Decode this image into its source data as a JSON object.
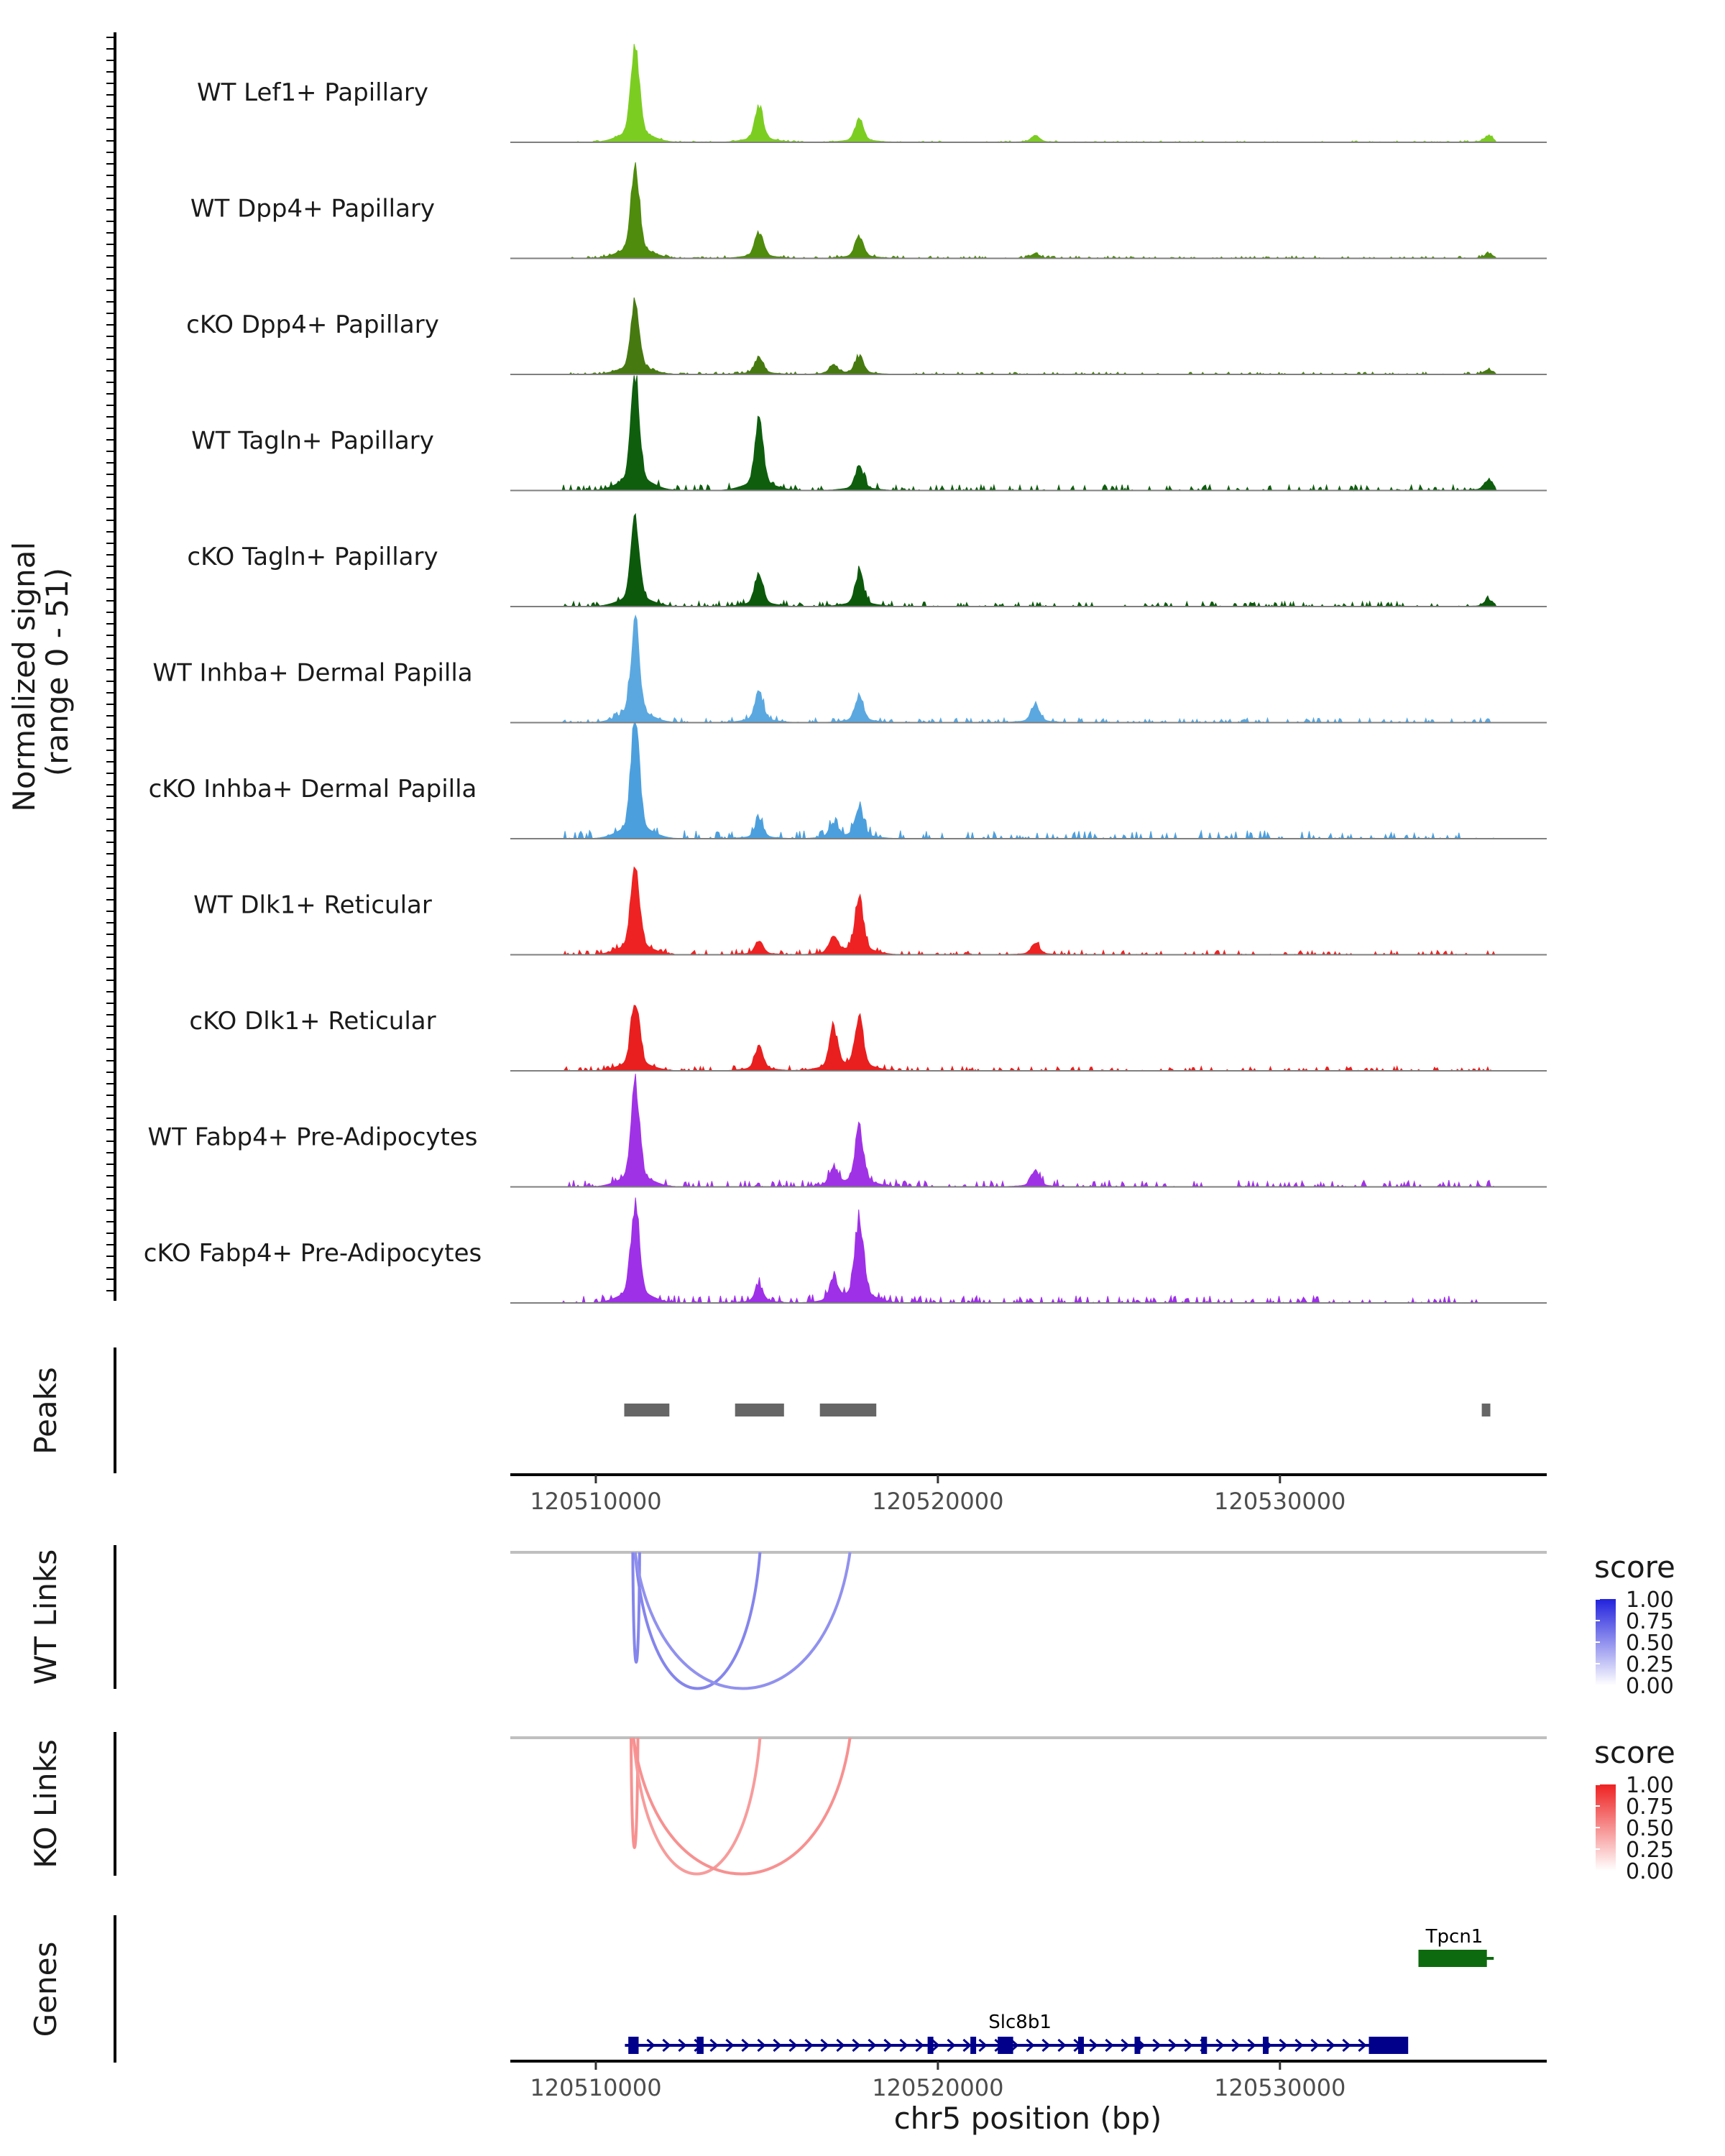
{
  "chart_data": {
    "type": "area",
    "chromosome": "chr5",
    "xlabel": "chr5 position (bp)",
    "xlim": [
      120507500,
      120537800
    ],
    "x_ticks": [
      120510000,
      120520000,
      120530000
    ],
    "x_tick_labels": [
      "120510000",
      "120520000",
      "120530000"
    ],
    "coverage": {
      "ylabel": "Normalized signal\n(range 0 - 51)",
      "ylabel_lines": [
        "Normalized signal",
        "(range 0 - 51)"
      ],
      "ylim": [
        0,
        51
      ],
      "tracks": [
        {
          "name": "WT Lef1+ Papillary",
          "color": "#7CCD22",
          "peaks": [
            [
              120511150,
              42
            ],
            [
              120514770,
              16
            ],
            [
              120517700,
              10
            ],
            [
              120522850,
              3
            ],
            [
              120536100,
              3
            ]
          ],
          "noise": 0.6
        },
        {
          "name": "WT Dpp4+ Papillary",
          "color": "#4F8B0C",
          "peaks": [
            [
              120511150,
              42
            ],
            [
              120514770,
              12
            ],
            [
              120517700,
              10
            ],
            [
              120522850,
              2
            ],
            [
              120536100,
              2
            ]
          ],
          "noise": 1.0
        },
        {
          "name": "cKO Dpp4+ Papillary",
          "color": "#467A10",
          "peaks": [
            [
              120511150,
              32
            ],
            [
              120514770,
              8
            ],
            [
              120517700,
              8
            ],
            [
              120516950,
              4
            ],
            [
              120536100,
              2
            ]
          ],
          "noise": 1.0
        },
        {
          "name": "WT Tagln+ Papillary",
          "color": "#0E5E0E",
          "peaks": [
            [
              120511150,
              51
            ],
            [
              120514770,
              31
            ],
            [
              120517700,
              11
            ],
            [
              120536100,
              5
            ]
          ],
          "noise": 2.6
        },
        {
          "name": "cKO Tagln+ Papillary",
          "color": "#0C590C",
          "peaks": [
            [
              120511150,
              38
            ],
            [
              120514770,
              15
            ],
            [
              120517700,
              15
            ],
            [
              120536100,
              3
            ]
          ],
          "noise": 2.2
        },
        {
          "name": "WT Inhba+ Dermal Papilla",
          "color": "#5BA8E0",
          "peaks": [
            [
              120511150,
              45
            ],
            [
              120514770,
              14
            ],
            [
              120517700,
              12
            ],
            [
              120522850,
              8
            ]
          ],
          "noise": 2.0
        },
        {
          "name": "cKO Inhba+ Dermal Papilla",
          "color": "#4C9FDD",
          "peaks": [
            [
              120511150,
              51
            ],
            [
              120514770,
              8
            ],
            [
              120517700,
              14
            ],
            [
              120516950,
              7
            ]
          ],
          "noise": 3.6
        },
        {
          "name": "WT Dlk1+ Reticular",
          "color": "#EE2222",
          "peaks": [
            [
              120511150,
              42
            ],
            [
              120517700,
              25
            ],
            [
              120516950,
              8
            ],
            [
              120514770,
              6
            ],
            [
              120522850,
              5
            ]
          ],
          "noise": 2.0
        },
        {
          "name": "cKO Dlk1+ Reticular",
          "color": "#E91F1F",
          "peaks": [
            [
              120511150,
              33
            ],
            [
              120514770,
              11
            ],
            [
              120517700,
              23
            ],
            [
              120516950,
              18
            ]
          ],
          "noise": 2.0
        },
        {
          "name": "WT Fabp4+ Pre-Adipocytes",
          "color": "#A032E6",
          "peaks": [
            [
              120511150,
              45
            ],
            [
              120517700,
              26
            ],
            [
              120516950,
              8
            ],
            [
              120522850,
              7
            ]
          ],
          "noise": 3.0
        },
        {
          "name": "cKO Fabp4+ Pre-Adipocytes",
          "color": "#9E30E8",
          "peaks": [
            [
              120511150,
              45
            ],
            [
              120517700,
              38
            ],
            [
              120516950,
              10
            ],
            [
              120514770,
              8
            ]
          ],
          "noise": 3.2
        }
      ]
    },
    "peaks": {
      "title": "Peaks",
      "regions": [
        [
          120510830,
          120512150
        ],
        [
          120514070,
          120515500
        ],
        [
          120516550,
          120518200
        ],
        [
          120535900,
          120536150
        ]
      ],
      "color": "#666666"
    },
    "links": [
      {
        "title": "WT Links",
        "legend_title": "score",
        "legend_ticks": [
          "1.00",
          "0.75",
          "0.50",
          "0.25",
          "0.00"
        ],
        "color_high": "#2222DD",
        "arcs": [
          {
            "start": 120511080,
            "end": 120511280,
            "score": 0.55
          },
          {
            "start": 120511150,
            "end": 120514800,
            "score": 0.55
          },
          {
            "start": 120511150,
            "end": 120517430,
            "score": 0.5
          }
        ]
      },
      {
        "title": "KO Links",
        "legend_title": "score",
        "legend_ticks": [
          "1.00",
          "0.75",
          "0.50",
          "0.25",
          "0.00"
        ],
        "color_high": "#EE2222",
        "arcs": [
          {
            "start": 120511030,
            "end": 120511230,
            "score": 0.5
          },
          {
            "start": 120511100,
            "end": 120514800,
            "score": 0.45
          },
          {
            "start": 120511100,
            "end": 120517430,
            "score": 0.5
          }
        ]
      }
    ],
    "genes": {
      "title": "Genes",
      "items": [
        {
          "name": "Tpcn1",
          "strand": "-",
          "start": 120534050,
          "end": 120536250,
          "color": "#0E6A0E",
          "exons": [
            [
              120534050,
              120536050
            ]
          ]
        },
        {
          "name": "Slc8b1",
          "strand": "+",
          "start": 120510850,
          "end": 120533700,
          "color": "#00008B",
          "exons": [
            [
              120510950,
              120511250
            ],
            [
              120512950,
              120513150
            ],
            [
              120519700,
              120519800
            ],
            [
              120520950,
              120521050
            ],
            [
              120521750,
              120522200
            ],
            [
              120524100,
              120524200
            ],
            [
              120525750,
              120525850
            ],
            [
              120527700,
              120527800
            ],
            [
              120529500,
              120529600
            ],
            [
              120532600,
              120533750
            ]
          ]
        }
      ]
    }
  }
}
